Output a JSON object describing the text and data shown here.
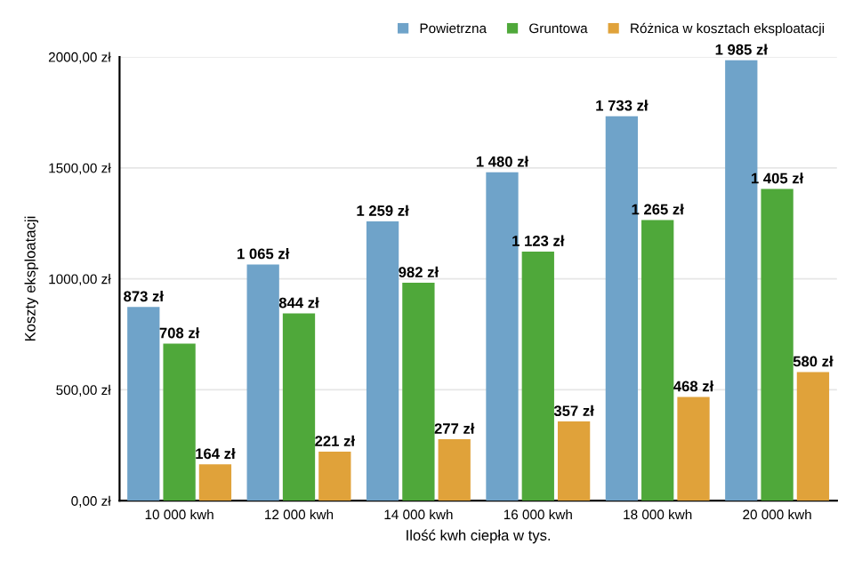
{
  "chart_data": {
    "type": "bar",
    "categories": [
      "10 000 kwh",
      "12 000 kwh",
      "14 000 kwh",
      "16 000 kwh",
      "18 000 kwh",
      "20 000 kwh"
    ],
    "series": [
      {
        "name": "Powietrzna",
        "color": "#6fa3c9",
        "values": [
          873,
          1065,
          1259,
          1480,
          1733,
          1985
        ],
        "value_labels": [
          "873 zł",
          "1 065 zł",
          "1 259 zł",
          "1 480 zł",
          "1 733 zł",
          "1 985 zł"
        ]
      },
      {
        "name": "Gruntowa",
        "color": "#4fa83a",
        "values": [
          708,
          844,
          982,
          1123,
          1265,
          1405
        ],
        "value_labels": [
          "708 zł",
          "844 zł",
          "982 zł",
          "1 123 zł",
          "1 265 zł",
          "1 405 zł"
        ]
      },
      {
        "name": "Różnica w kosztach eksploatacji",
        "color": "#e0a23a",
        "values": [
          164,
          221,
          277,
          357,
          468,
          580
        ],
        "value_labels": [
          "164 zł",
          "221 zł",
          "277 zł",
          "357 zł",
          "468 zł",
          "580 zł"
        ]
      }
    ],
    "xlabel": "Ilość kwh ciepła w tys.",
    "ylabel": "Koszty eksploatacji",
    "ylim": [
      0,
      2000
    ],
    "yticks": [
      {
        "value": 0,
        "label": "0,00 zł"
      },
      {
        "value": 500,
        "label": "500,00 zł"
      },
      {
        "value": 1000,
        "label": "1000,00 zł"
      },
      {
        "value": 1500,
        "label": "1500,00 zł"
      },
      {
        "value": 2000,
        "label": "2000,00 zł"
      }
    ],
    "grid": "y",
    "legend": "top right"
  }
}
